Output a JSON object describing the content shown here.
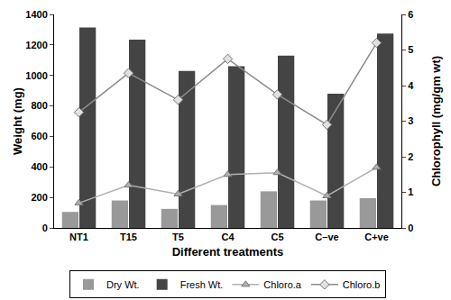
{
  "chart_data": {
    "type": "bar",
    "x_label": "Different treatments",
    "y_label": "Weight (mg)",
    "y2_label": "Chlorophyll (mg/gm wt)",
    "categories": [
      "NT1",
      "T15",
      "T5",
      "C4",
      "C5",
      "C–ve",
      "C+ve"
    ],
    "series": [
      {
        "name": "Dry Wt.",
        "type": "bar",
        "color": "#999999",
        "values": [
          105,
          180,
          125,
          150,
          240,
          180,
          195
        ]
      },
      {
        "name": "Fresh Wt.",
        "type": "bar",
        "color": "#444444",
        "values": [
          1315,
          1235,
          1030,
          1060,
          1130,
          880,
          1275
        ]
      },
      {
        "name": "Chloro.a",
        "type": "line",
        "axis": "y2",
        "color": "#b0b0b0",
        "marker": "triangle",
        "values": [
          0.7,
          1.2,
          0.95,
          1.5,
          1.55,
          0.9,
          1.7
        ]
      },
      {
        "name": "Chloro.b",
        "type": "line",
        "axis": "y2",
        "color": "#8c8c8c",
        "marker": "diamond",
        "values": [
          3.25,
          4.35,
          3.6,
          4.75,
          3.75,
          2.9,
          5.2
        ]
      }
    ],
    "ylim": [
      0,
      1400
    ],
    "yticks": [
      0,
      200,
      400,
      600,
      800,
      1000,
      1200,
      1400
    ],
    "y2lim": [
      0,
      6
    ],
    "y2ticks": [
      0,
      1,
      2,
      3,
      4,
      5,
      6
    ],
    "grid": false,
    "legend": "bottom"
  }
}
